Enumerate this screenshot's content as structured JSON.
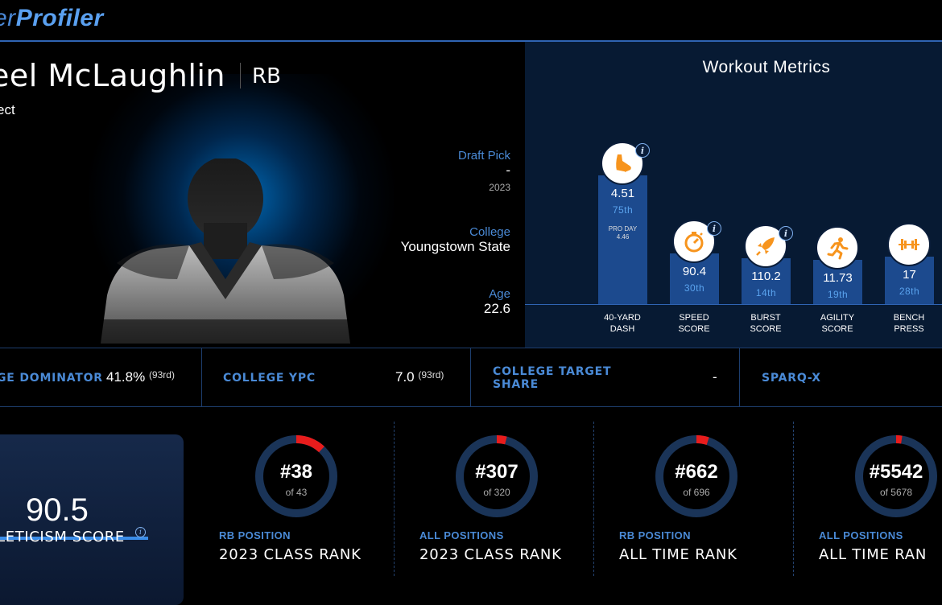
{
  "brand": {
    "logo_part1": "er",
    "logo_part2": "Profiler"
  },
  "player": {
    "name": "eel McLaughlin",
    "position": "RB",
    "status": "ect",
    "draft_pick_label": "Draft Pick",
    "draft_pick_value": "-",
    "draft_year": "2023",
    "college_label": "College",
    "college_value": "Youngstown State",
    "age_label": "Age",
    "age_value": "22.6"
  },
  "workout": {
    "title": "Workout Metrics",
    "metrics": [
      {
        "value": "4.51",
        "rank": "75th",
        "pro_day_label": "PRO DAY",
        "pro_day_value": "4.46",
        "label_1": "40-YARD",
        "label_2": "DASH",
        "icon": "running-shoe-icon",
        "has_info": true
      },
      {
        "value": "90.4",
        "rank": "30th",
        "label_1": "SPEED",
        "label_2": "SCORE",
        "icon": "stopwatch-icon",
        "has_info": true
      },
      {
        "value": "110.2",
        "rank": "14th",
        "label_1": "BURST",
        "label_2": "SCORE",
        "icon": "rocket-icon",
        "has_info": true
      },
      {
        "value": "11.73",
        "rank": "19th",
        "label_1": "AGILITY",
        "label_2": "SCORE",
        "icon": "runner-icon",
        "has_info": false
      },
      {
        "value": "17",
        "rank": "28th",
        "label_1": "BENCH",
        "label_2": "PRESS",
        "icon": "barbell-icon",
        "has_info": false
      }
    ],
    "bar_heights_pct": [
      0.84,
      0.33,
      0.3,
      0.29,
      0.31
    ],
    "accent_color": "#f7941d"
  },
  "stats": [
    {
      "label": "GE DOMINATOR",
      "value": "41.8%",
      "rank": "(93rd)"
    },
    {
      "label": "COLLEGE YPC",
      "value": "7.0",
      "rank": "(93rd)"
    },
    {
      "label_1": "COLLEGE TARGET",
      "label_2": "SHARE",
      "value": "-"
    },
    {
      "label": "SPARQ-X",
      "value": ""
    }
  ],
  "athleticism": {
    "score": "90.5",
    "label": "HLETICISM SCORE",
    "info": "i"
  },
  "ranks": [
    {
      "num": "#38",
      "of": "of 43",
      "category": "RB POSITION",
      "title": "2023 CLASS RANK",
      "fraction": 0.12
    },
    {
      "num": "#307",
      "of": "of 320",
      "category": "ALL POSITIONS",
      "title": "2023 CLASS RANK",
      "fraction": 0.04
    },
    {
      "num": "#662",
      "of": "of 696",
      "category": "RB POSITION",
      "title": "ALL TIME RANK",
      "fraction": 0.05
    },
    {
      "num": "#5542",
      "of": "of 5678",
      "category": "ALL POSITIONS",
      "title": "ALL TIME RAN",
      "fraction": 0.024
    }
  ],
  "colors": {
    "brand_blue": "#4a8ad6",
    "bar_blue": "#1c4a8e",
    "panel_navy": "#071a33",
    "ring_bg": "#1a3458",
    "ring_red": "#e81c1c"
  }
}
